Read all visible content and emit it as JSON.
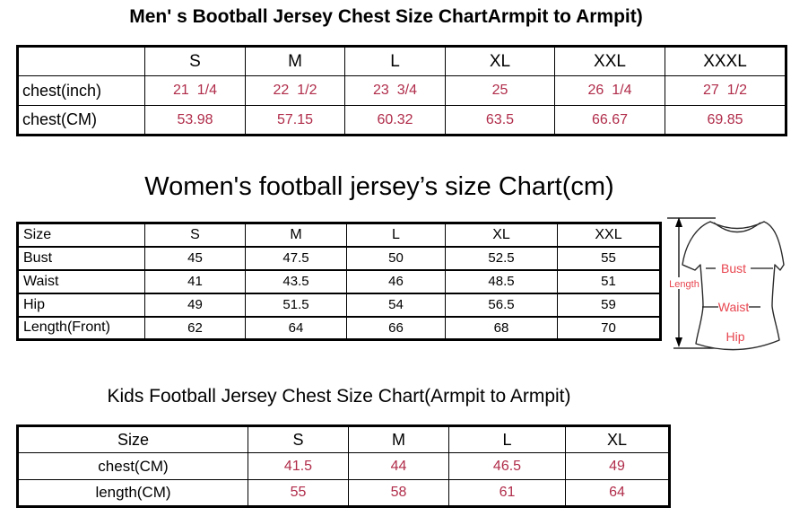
{
  "colors": {
    "value_red": "#b02c4a",
    "diagram_red": "#e8454f",
    "line_dark": "#2a2a2a"
  },
  "men_chart": {
    "title": "Men' s Bootball Jersey Chest Size ChartArmpit to Armpit)",
    "columns": [
      "",
      "S",
      "M",
      "L",
      "XL",
      "XXL",
      "XXXL"
    ],
    "rows": [
      {
        "label": "chest(inch)",
        "values": [
          "21  1/4",
          "22  1/2",
          "23  3/4",
          "25",
          "26  1/4",
          "27  1/2"
        ]
      },
      {
        "label": "chest(CM)",
        "values": [
          "53.98",
          "57.15",
          "60.32",
          "63.5",
          "66.67",
          "69.85"
        ]
      }
    ]
  },
  "women_chart": {
    "title": "Women's football jersey’s size Chart(cm)",
    "columns": [
      "Size",
      "S",
      "M",
      "L",
      "XL",
      "XXL"
    ],
    "rows": [
      {
        "label": "Bust",
        "values": [
          "45",
          "47.5",
          "50",
          "52.5",
          "55"
        ]
      },
      {
        "label": "Waist",
        "values": [
          "41",
          "43.5",
          "46",
          "48.5",
          "51"
        ]
      },
      {
        "label": "Hip",
        "values": [
          "49",
          "51.5",
          "54",
          "56.5",
          "59"
        ]
      },
      {
        "label": "Length(Front)",
        "values": [
          "62",
          "64",
          "66",
          "68",
          "70"
        ]
      }
    ],
    "diagram_labels": {
      "length": "Length",
      "bust": "Bust",
      "waist": "Waist",
      "hip": "Hip"
    }
  },
  "kids_chart": {
    "title": "Kids Football Jersey Chest Size Chart(Armpit to Armpit)",
    "columns": [
      "Size",
      "S",
      "M",
      "L",
      "XL"
    ],
    "rows": [
      {
        "label": "chest(CM)",
        "values": [
          "41.5",
          "44",
          "46.5",
          "49"
        ]
      },
      {
        "label": "length(CM)",
        "values": [
          "55",
          "58",
          "61",
          "64"
        ]
      }
    ]
  }
}
